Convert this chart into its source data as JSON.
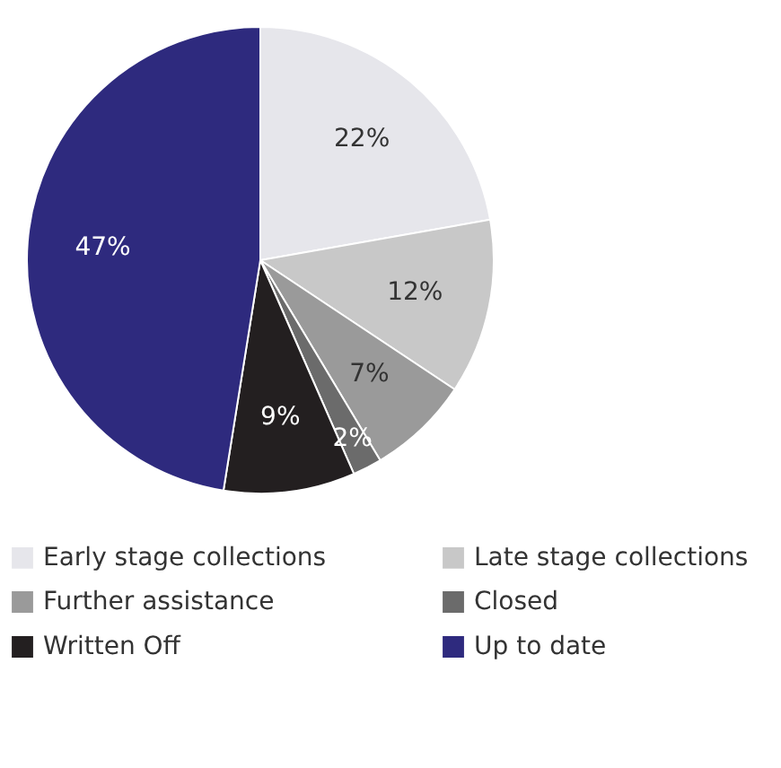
{
  "chart_data": {
    "type": "pie",
    "categories": [
      "Early stage collections",
      "Late stage collections",
      "Further assistance",
      "Closed",
      "Written Off",
      "Up to date"
    ],
    "values": [
      22,
      12,
      7,
      2,
      9,
      47
    ],
    "colors": [
      "#e6e6eb",
      "#c8c8c8",
      "#9a9a9a",
      "#6b6b6b",
      "#231f20",
      "#2e2a7e"
    ],
    "value_labels": [
      "22%",
      "12%",
      "7%",
      "2%",
      "9%",
      "47%"
    ],
    "legend": "bottom"
  }
}
